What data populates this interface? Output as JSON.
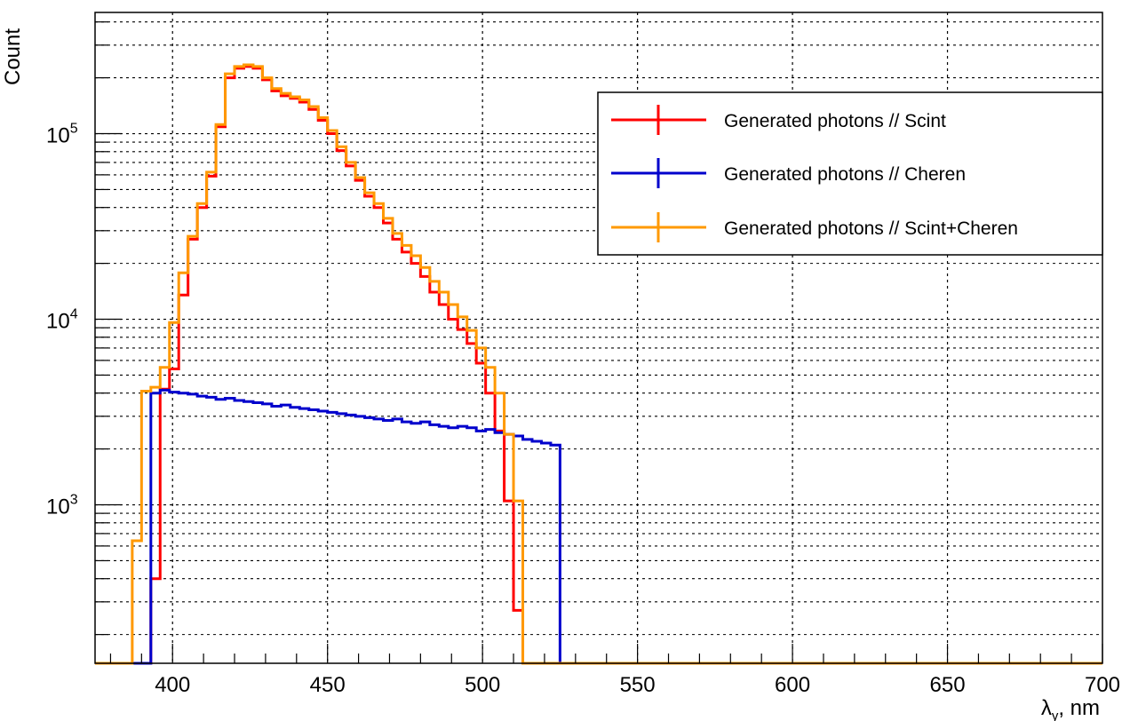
{
  "chart_data": {
    "type": "histogram-step",
    "title": "",
    "xlabel": "λ",
    "xlabel_sub": "γ",
    "xlabel_suffix": ", nm",
    "ylabel": "Count",
    "xlim": [
      375,
      700
    ],
    "ylim": [
      140,
      450000
    ],
    "yscale": "log",
    "grid": true,
    "x_ticks": [
      400,
      450,
      500,
      550,
      600,
      650,
      700
    ],
    "y_ticks": [
      {
        "value": 1000,
        "base": "10",
        "exp": "3"
      },
      {
        "value": 10000,
        "base": "10",
        "exp": "4"
      },
      {
        "value": 100000,
        "base": "10",
        "exp": "5"
      }
    ],
    "bin_width": 3,
    "bin_start": 384,
    "legend_position": "top-right",
    "series": [
      {
        "name": "Generated photons // Scint",
        "color": "#ff0000",
        "values": [
          0,
          0,
          0,
          400,
          4200,
          5400,
          13500,
          27000,
          40000,
          59000,
          109000,
          200000,
          225000,
          230000,
          225000,
          195000,
          170000,
          160000,
          155000,
          148000,
          135000,
          118000,
          100000,
          81000,
          67000,
          56000,
          46000,
          40000,
          33000,
          27000,
          23000,
          20000,
          17000,
          14000,
          12000,
          10000,
          8800,
          7400,
          5800,
          4000,
          2500,
          1050,
          270,
          0,
          0
        ]
      },
      {
        "name": "Generated photons // Cheren",
        "color": "#0000cc",
        "values": [
          0,
          0,
          0,
          4000,
          4150,
          4050,
          4000,
          3950,
          3850,
          3800,
          3700,
          3750,
          3650,
          3600,
          3550,
          3500,
          3400,
          3450,
          3350,
          3300,
          3250,
          3200,
          3150,
          3100,
          3050,
          3000,
          2950,
          2900,
          2850,
          2900,
          2800,
          2750,
          2800,
          2700,
          2650,
          2600,
          2650,
          2600,
          2500,
          2550,
          2450,
          2400,
          2350,
          2250,
          2200,
          2150,
          2100,
          0,
          0
        ]
      },
      {
        "name": "Generated photons // Scint+Cheren",
        "color": "#ff9900",
        "values": [
          0,
          640,
          4100,
          4300,
          5500,
          9600,
          17800,
          28000,
          42000,
          62000,
          112000,
          210000,
          230000,
          235000,
          230000,
          200000,
          175000,
          165000,
          158000,
          152000,
          140000,
          122000,
          104000,
          85000,
          70000,
          58000,
          48000,
          42000,
          35000,
          29000,
          25000,
          22000,
          19000,
          16000,
          14000,
          12000,
          10300,
          8700,
          7000,
          5500,
          4000,
          2400,
          1050,
          0,
          0
        ]
      }
    ]
  }
}
